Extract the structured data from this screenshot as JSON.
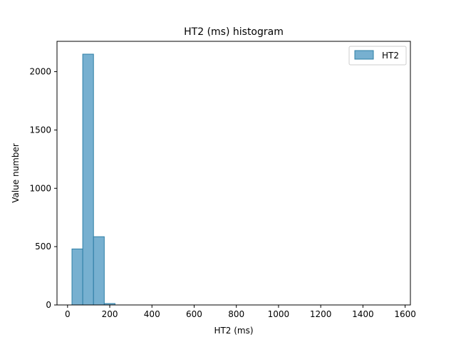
{
  "chart_data": {
    "type": "bar",
    "title": "HT2 (ms) histogram",
    "xlabel": "HT2 (ms)",
    "ylabel": "Value number",
    "xlim": [
      -50,
      1625
    ],
    "ylim": [
      0,
      2260
    ],
    "xticks": [
      0,
      200,
      400,
      600,
      800,
      1000,
      1200,
      1400,
      1600
    ],
    "yticks": [
      0,
      500,
      1000,
      1500,
      2000
    ],
    "bin_width": 51,
    "series": [
      {
        "name": "HT2",
        "color": "#5fa2c8",
        "edge_color": "#2e7fa6",
        "bins": [
          {
            "x": 21,
            "value": 480
          },
          {
            "x": 72,
            "value": 2150
          },
          {
            "x": 123,
            "value": 585
          },
          {
            "x": 174,
            "value": 12
          }
        ]
      }
    ],
    "grid": false,
    "legend_position": "top-right"
  }
}
